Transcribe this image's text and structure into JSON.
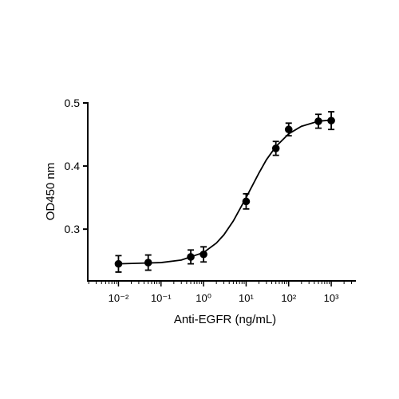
{
  "chart_data": {
    "type": "scatter",
    "xlabel": "Anti-EGFR (ng/mL)",
    "ylabel": "OD450 nm",
    "xscale": "log",
    "xlim": [
      0.0019,
      3800
    ],
    "ylim": [
      0.218,
      0.5
    ],
    "xticks": [
      {
        "value": 0.01,
        "label": "10⁻²"
      },
      {
        "value": 0.1,
        "label": "10⁻¹"
      },
      {
        "value": 1,
        "label": "10⁰"
      },
      {
        "value": 10,
        "label": "10¹"
      },
      {
        "value": 100,
        "label": "10²"
      },
      {
        "value": 1000,
        "label": "10³"
      }
    ],
    "xminorticks": [
      0.002,
      0.003,
      0.004,
      0.005,
      0.006,
      0.007,
      0.008,
      0.009,
      0.02,
      0.03,
      0.04,
      0.05,
      0.06,
      0.07,
      0.08,
      0.09,
      0.2,
      0.3,
      0.4,
      0.5,
      0.6,
      0.7,
      0.8,
      0.9,
      2,
      3,
      4,
      5,
      6,
      7,
      8,
      9,
      20,
      30,
      40,
      50,
      60,
      70,
      80,
      90,
      200,
      300,
      400,
      500,
      600,
      700,
      800,
      900,
      2000,
      3000
    ],
    "yticks": [
      0.3,
      0.4,
      0.5
    ],
    "color": "#000000",
    "series": [
      {
        "x": [
          0.01,
          0.05,
          0.5,
          1,
          10,
          50,
          100,
          500,
          1000
        ],
        "values": [
          0.245,
          0.247,
          0.256,
          0.26,
          0.344,
          0.428,
          0.458,
          0.471,
          0.472
        ],
        "errors": [
          0.013,
          0.012,
          0.011,
          0.012,
          0.012,
          0.011,
          0.01,
          0.011,
          0.014
        ]
      }
    ],
    "fit": {
      "x": [
        0.01,
        0.03,
        0.1,
        0.3,
        1,
        2,
        3,
        5,
        10,
        20,
        30,
        50,
        100,
        200,
        500,
        1000
      ],
      "values": [
        0.245,
        0.246,
        0.247,
        0.251,
        0.263,
        0.278,
        0.291,
        0.313,
        0.35,
        0.389,
        0.41,
        0.431,
        0.451,
        0.463,
        0.471,
        0.473
      ]
    }
  }
}
